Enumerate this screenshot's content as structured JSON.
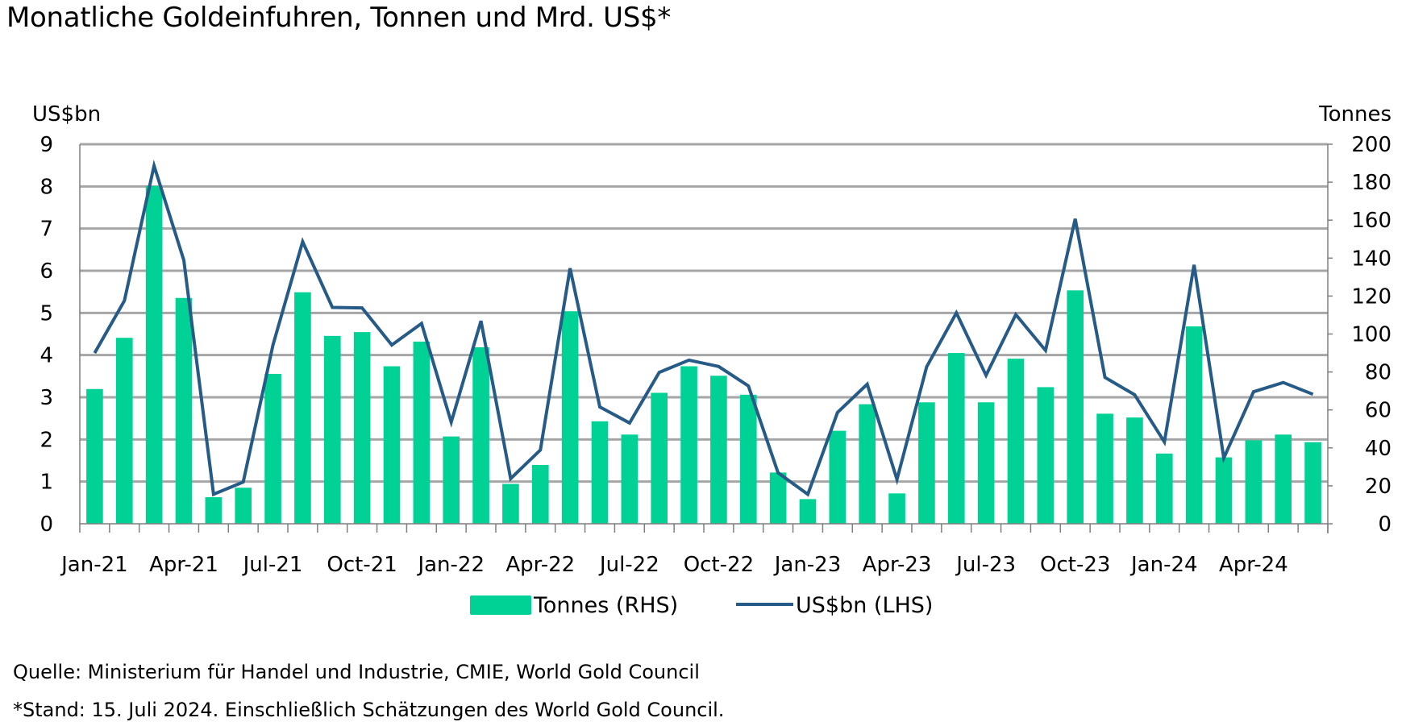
{
  "chart_data": {
    "type": "bar+line",
    "title": "Monatliche Goldeinfuhren, Tonnen und Mrd. US$*",
    "y_left_label": "US$bn",
    "y_right_label": "Tonnes",
    "y_left_range": [
      0,
      9
    ],
    "y_left_ticks": [
      "0",
      "1",
      "2",
      "3",
      "4",
      "5",
      "6",
      "7",
      "8",
      "9"
    ],
    "y_right_range": [
      0,
      200
    ],
    "y_right_ticks": [
      "0",
      "20",
      "40",
      "60",
      "80",
      "100",
      "120",
      "140",
      "160",
      "180",
      "200"
    ],
    "grid": true,
    "x_tick_labels": [
      "Jan-21",
      "Apr-21",
      "Jul-21",
      "Oct-21",
      "Jan-22",
      "Apr-22",
      "Jul-22",
      "Oct-22",
      "Jan-23",
      "Apr-23",
      "Jul-23",
      "Oct-23",
      "Jan-24",
      "Apr-24"
    ],
    "categories": [
      "Jan-21",
      "Feb-21",
      "Mar-21",
      "Apr-21",
      "May-21",
      "Jun-21",
      "Jul-21",
      "Aug-21",
      "Sep-21",
      "Oct-21",
      "Nov-21",
      "Dec-21",
      "Jan-22",
      "Feb-22",
      "Mar-22",
      "Apr-22",
      "May-22",
      "Jun-22",
      "Jul-22",
      "Aug-22",
      "Sep-22",
      "Oct-22",
      "Nov-22",
      "Dec-22",
      "Jan-23",
      "Feb-23",
      "Mar-23",
      "Apr-23",
      "May-23",
      "Jun-23",
      "Jul-23",
      "Aug-23",
      "Sep-23",
      "Oct-23",
      "Nov-23",
      "Dec-23",
      "Jan-24",
      "Feb-24",
      "Mar-24",
      "Apr-24",
      "May-24",
      "Jun-24"
    ],
    "series": [
      {
        "name": "Tonnes (RHS)",
        "type": "bar",
        "axis": "right",
        "color": "#00D296",
        "values": [
          71,
          98,
          178,
          119,
          14,
          19,
          79,
          122,
          99,
          101,
          83,
          96,
          46,
          93,
          21,
          31,
          112,
          54,
          47,
          69,
          83,
          78,
          68,
          27,
          13,
          49,
          63,
          16,
          64,
          90,
          64,
          87,
          72,
          123,
          58,
          56,
          37,
          104,
          35,
          44,
          47,
          43
        ]
      },
      {
        "name": "US$bn (LHS)",
        "type": "line",
        "axis": "left",
        "color": "#255B86",
        "values": [
          4.05,
          5.29,
          8.49,
          6.25,
          0.7,
          0.99,
          4.24,
          6.69,
          5.13,
          5.12,
          4.24,
          4.75,
          2.41,
          4.81,
          1.07,
          1.75,
          6.06,
          2.77,
          2.39,
          3.59,
          3.88,
          3.73,
          3.27,
          1.21,
          0.7,
          2.64,
          3.31,
          1.05,
          3.72,
          5.0,
          3.52,
          4.96,
          4.11,
          7.23,
          3.47,
          3.06,
          1.94,
          6.14,
          1.56,
          3.13,
          3.35,
          3.07
        ]
      }
    ],
    "legend": {
      "placement": "bottom",
      "items": [
        "Tonnes (RHS)",
        "US$bn (LHS)"
      ]
    },
    "gridline_color": "#A6A6A6"
  },
  "footer": {
    "source": "Quelle: Ministerium für Handel und Industrie, CMIE, World Gold Council",
    "note": "*Stand: 15. Juli 2024. Einschließlich Schätzungen des World Gold Council."
  }
}
